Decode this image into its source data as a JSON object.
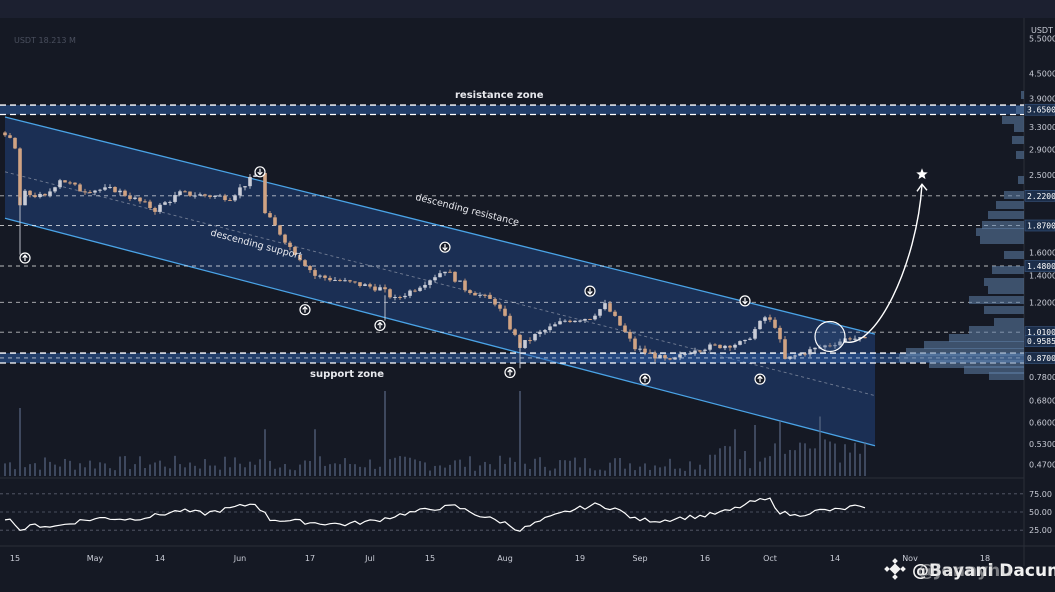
{
  "chart_data": {
    "type": "candlestick",
    "currency": "USDT",
    "price_axis": {
      "scale": "log",
      "range": [
        0.44,
        6.2
      ],
      "ticks": [
        "5.5000",
        "4.5000",
        "3.9000",
        "3.3000",
        "2.9000",
        "2.5000",
        "1.6000",
        "1.4000",
        "1.2000",
        "0.7800",
        "0.6800",
        "0.6000",
        "0.5300",
        "0.4700"
      ],
      "highlighted_tags": [
        {
          "value": 3.65,
          "label": "3.6500"
        },
        {
          "value": 2.22,
          "label": "2.2200"
        },
        {
          "value": 1.87,
          "label": "1.8700"
        },
        {
          "value": 1.48,
          "label": "1.4800"
        },
        {
          "value": 1.01,
          "label": "1.0100"
        },
        {
          "value": 0.9585,
          "label": "0.9585"
        },
        {
          "value": 0.87,
          "label": "0.8700"
        }
      ]
    },
    "time_axis": {
      "labels": [
        {
          "label": "15",
          "i": 2
        },
        {
          "label": "May",
          "i": 18
        },
        {
          "label": "14",
          "i": 31
        },
        {
          "label": "Jun",
          "i": 47
        },
        {
          "label": "17",
          "i": 61
        },
        {
          "label": "Jul",
          "i": 73
        },
        {
          "label": "15",
          "i": 85
        },
        {
          "label": "Aug",
          "i": 100
        },
        {
          "label": "19",
          "i": 115
        },
        {
          "label": "Sep",
          "i": 127
        },
        {
          "label": "16",
          "i": 140
        },
        {
          "label": "Oct",
          "i": 153
        },
        {
          "label": "14",
          "i": 166
        },
        {
          "label": "Nov",
          "i": 181
        },
        {
          "label": "18",
          "i": 196
        }
      ]
    },
    "dashed_levels": [
      2.22,
      1.87,
      1.48,
      1.2,
      1.01,
      0.87
    ],
    "price_path": [
      [
        0,
        3.2
      ],
      [
        2,
        2.9
      ],
      [
        3,
        2.1
      ],
      [
        4,
        2.25
      ],
      [
        8,
        2.2
      ],
      [
        11,
        2.45
      ],
      [
        15,
        2.3
      ],
      [
        22,
        2.3
      ],
      [
        30,
        2.05
      ],
      [
        35,
        2.25
      ],
      [
        45,
        2.2
      ],
      [
        51,
        2.55
      ],
      [
        52,
        2.0
      ],
      [
        57,
        1.65
      ],
      [
        62,
        1.4
      ],
      [
        68,
        1.35
      ],
      [
        75,
        1.3
      ],
      [
        78,
        1.22
      ],
      [
        82,
        1.3
      ],
      [
        88,
        1.45
      ],
      [
        92,
        1.3
      ],
      [
        98,
        1.2
      ],
      [
        103,
        0.93
      ],
      [
        106,
        0.99
      ],
      [
        112,
        1.08
      ],
      [
        117,
        1.1
      ],
      [
        120,
        1.18
      ],
      [
        123,
        1.05
      ],
      [
        126,
        0.92
      ],
      [
        131,
        0.87
      ],
      [
        133,
        0.85
      ],
      [
        138,
        0.92
      ],
      [
        142,
        0.93
      ],
      [
        148,
        0.95
      ],
      [
        152,
        1.1
      ],
      [
        154,
        1.05
      ],
      [
        156,
        0.86
      ],
      [
        160,
        0.9
      ],
      [
        166,
        0.95
      ],
      [
        169,
        0.98
      ],
      [
        172,
        0.96
      ]
    ],
    "volume_spikes": [
      {
        "i": 3,
        "v": 0.8
      },
      {
        "i": 76,
        "v": 1.0
      },
      {
        "i": 103,
        "v": 1.0
      },
      {
        "i": 52,
        "v": 0.55
      },
      {
        "i": 62,
        "v": 0.55
      },
      {
        "i": 146,
        "v": 0.55
      },
      {
        "i": 150,
        "v": 0.6
      },
      {
        "i": 155,
        "v": 0.65
      },
      {
        "i": 163,
        "v": 0.7
      }
    ],
    "volume_note": "USDT 18.213 M",
    "rsi": {
      "ticks": [
        75,
        50,
        25
      ],
      "tick_labels": [
        "75.00",
        "50.00",
        "25.00"
      ],
      "path": [
        [
          0,
          42
        ],
        [
          2,
          35
        ],
        [
          3,
          25
        ],
        [
          6,
          32
        ],
        [
          10,
          30
        ],
        [
          15,
          38
        ],
        [
          20,
          42
        ],
        [
          25,
          40
        ],
        [
          30,
          45
        ],
        [
          35,
          52
        ],
        [
          40,
          48
        ],
        [
          45,
          55
        ],
        [
          50,
          62
        ],
        [
          53,
          40
        ],
        [
          57,
          38
        ],
        [
          62,
          35
        ],
        [
          68,
          33
        ],
        [
          74,
          38
        ],
        [
          80,
          48
        ],
        [
          86,
          55
        ],
        [
          90,
          58
        ],
        [
          95,
          45
        ],
        [
          100,
          35
        ],
        [
          103,
          25
        ],
        [
          108,
          40
        ],
        [
          113,
          52
        ],
        [
          118,
          60
        ],
        [
          122,
          55
        ],
        [
          126,
          40
        ],
        [
          131,
          38
        ],
        [
          135,
          42
        ],
        [
          140,
          45
        ],
        [
          145,
          52
        ],
        [
          150,
          65
        ],
        [
          153,
          67
        ],
        [
          155,
          50
        ],
        [
          158,
          45
        ],
        [
          163,
          52
        ],
        [
          167,
          53
        ],
        [
          170,
          58
        ],
        [
          172,
          53
        ]
      ]
    },
    "annotations": {
      "resistance_zone": {
        "label": "resistance zone",
        "low": 3.55,
        "high": 3.75
      },
      "support_zone": {
        "label": "support zone",
        "low": 0.845,
        "high": 0.895
      },
      "descending_resistance": {
        "label": "descending resistance",
        "from": [
          0,
          3.5
        ],
        "to": [
          172,
          1.01
        ]
      },
      "descending_support": {
        "label": "descending support",
        "from": [
          0,
          1.95
        ],
        "to": [
          172,
          0.53
        ]
      },
      "midline": {
        "from": [
          0,
          2.55
        ],
        "to": [
          172,
          0.7
        ]
      },
      "down_markers": [
        [
          51,
          2.55
        ],
        [
          88,
          1.65
        ],
        [
          117,
          1.28
        ],
        [
          148,
          1.21
        ]
      ],
      "up_markers": [
        [
          4,
          1.55
        ],
        [
          60,
          1.15
        ],
        [
          75,
          1.05
        ],
        [
          101,
          0.8
        ],
        [
          128,
          0.77
        ],
        [
          151,
          0.77
        ]
      ],
      "circle": {
        "i": 165,
        "price": 0.985
      },
      "projection_target": {
        "i": 180,
        "price": 2.4
      }
    }
  },
  "watermark": {
    "name": "@Bayani Dacuma",
    "overlay": "@Jennyhu",
    "icon": "binance-logo-icon"
  },
  "colors": {
    "bg": "#151924",
    "channel": "#1f3766",
    "candle_up": "#c9ccd6",
    "candle_down": "#d0a383",
    "line": "#4aa3e6"
  }
}
